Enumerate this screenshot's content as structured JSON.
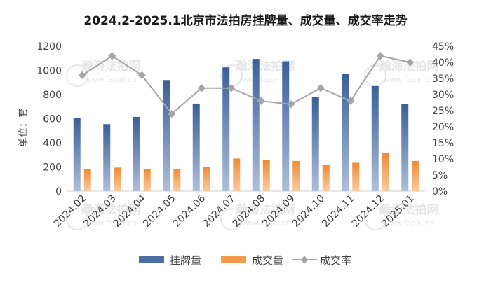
{
  "chart_data": {
    "type": "bar",
    "title": "2024.2-2025.1北京市法拍房挂牌量、成交量、成交率走势",
    "ylabel": "单位：套",
    "categories": [
      "2024.02",
      "2024.03",
      "2024.04",
      "2024.05",
      "2024.06",
      "2024.07",
      "2024.08",
      "2024.09",
      "2024.10",
      "2024.11",
      "2024.12",
      "2025.01"
    ],
    "series": [
      {
        "name": "挂牌量",
        "type": "bar",
        "axis": "left",
        "color": "#4a6fa5",
        "values": [
          605,
          555,
          615,
          920,
          725,
          1025,
          1095,
          1075,
          780,
          970,
          870,
          720
        ]
      },
      {
        "name": "成交量",
        "type": "bar",
        "axis": "left",
        "color": "#f39a4c",
        "values": [
          180,
          195,
          180,
          185,
          200,
          270,
          255,
          250,
          215,
          235,
          315,
          250
        ]
      },
      {
        "name": "成交率",
        "type": "line",
        "axis": "right",
        "color": "#a5a5a5",
        "values": [
          0.36,
          0.42,
          0.36,
          0.24,
          0.32,
          0.32,
          0.28,
          0.27,
          0.32,
          0.28,
          0.42,
          0.4
        ]
      }
    ],
    "y_left": {
      "min": 0,
      "max": 1200,
      "ticks": [
        "0",
        "200",
        "400",
        "600",
        "800",
        "1000",
        "1200"
      ]
    },
    "y_right": {
      "min": 0,
      "max": 0.45,
      "ticks": [
        "0%",
        "5%",
        "10%",
        "15%",
        "20%",
        "25%",
        "30%",
        "35%",
        "40%",
        "45%"
      ]
    },
    "legend_position": "bottom",
    "grid": false
  },
  "watermark": {
    "text": "瀚海法拍网",
    "url": "www.fapai.cn"
  }
}
